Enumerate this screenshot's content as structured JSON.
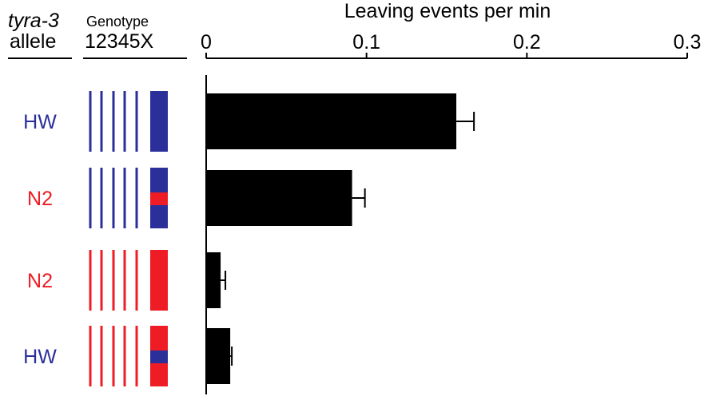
{
  "header": {
    "allele_title_line1": "tyra-3",
    "allele_title_line2": "allele",
    "genotype_title_line1": "Genotype",
    "genotype_title_line2": "12345X"
  },
  "colors": {
    "HW": "#2b2f9a",
    "N2": "#ee1c25",
    "bar": "#000000"
  },
  "chart_data": {
    "type": "bar",
    "orientation": "horizontal",
    "title": "",
    "xlabel": "Leaving events per min",
    "ylabel": "",
    "xlim": [
      0,
      0.3
    ],
    "xticks": [
      "0",
      "0.1",
      "0.2",
      "0.3"
    ],
    "grid": false,
    "categories": [
      {
        "allele": "HW",
        "genotype_chr_1_to_5": [
          "HW",
          "HW",
          "HW",
          "HW",
          "HW"
        ],
        "genotype_chrX": "HW",
        "genotype_chrX_insert": null
      },
      {
        "allele": "N2",
        "genotype_chr_1_to_5": [
          "HW",
          "HW",
          "HW",
          "HW",
          "HW"
        ],
        "genotype_chrX": "HW",
        "genotype_chrX_insert": "N2"
      },
      {
        "allele": "N2",
        "genotype_chr_1_to_5": [
          "N2",
          "N2",
          "N2",
          "N2",
          "N2"
        ],
        "genotype_chrX": "N2",
        "genotype_chrX_insert": null
      },
      {
        "allele": "HW",
        "genotype_chr_1_to_5": [
          "N2",
          "N2",
          "N2",
          "N2",
          "N2"
        ],
        "genotype_chrX": "N2",
        "genotype_chrX_insert": "HW"
      }
    ],
    "values": [
      0.156,
      0.091,
      0.009,
      0.015
    ],
    "errors": [
      0.011,
      0.008,
      0.003,
      0.001
    ]
  }
}
